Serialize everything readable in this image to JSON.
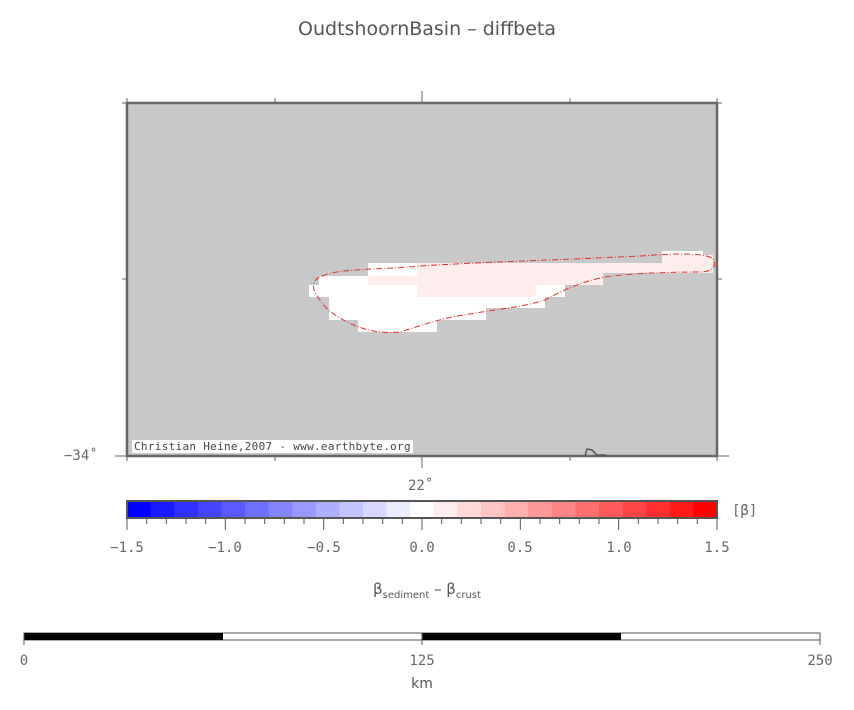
{
  "title": "OudtshoornBasin – diffbeta",
  "map": {
    "background_color": "#c8c8c8",
    "lat_label": "−34˚",
    "lon_label": "22˚",
    "credit": "Christian Heine,2007 - www.earthbyte.org",
    "outline_color": "#e03030"
  },
  "colorbar": {
    "range": [
      -1.5,
      1.5
    ],
    "tick_labels": [
      "−1.5",
      "−1.0",
      "−0.5",
      "0.0",
      "0.5",
      "1.0",
      "1.5"
    ],
    "unit_label": "[β]",
    "colors": [
      "#0000ff",
      "#1a1aff",
      "#3030ff",
      "#4545ff",
      "#5a5aff",
      "#6f6fff",
      "#8484ff",
      "#9999ff",
      "#aeaeff",
      "#c3c3ff",
      "#d8d8ff",
      "#ececff",
      "#ffffff",
      "#ffecec",
      "#ffd8d8",
      "#ffc3c3",
      "#ffaeae",
      "#ff9999",
      "#ff8484",
      "#ff6f6f",
      "#ff5a5a",
      "#ff4545",
      "#ff3030",
      "#ff1a1a",
      "#ff0000"
    ]
  },
  "formula": {
    "beta": "β",
    "sub1": "sediment",
    "minus": " – ",
    "sub2": "crust"
  },
  "scalebar": {
    "tick_labels": [
      "0",
      "125",
      "250"
    ],
    "unit": "km"
  }
}
